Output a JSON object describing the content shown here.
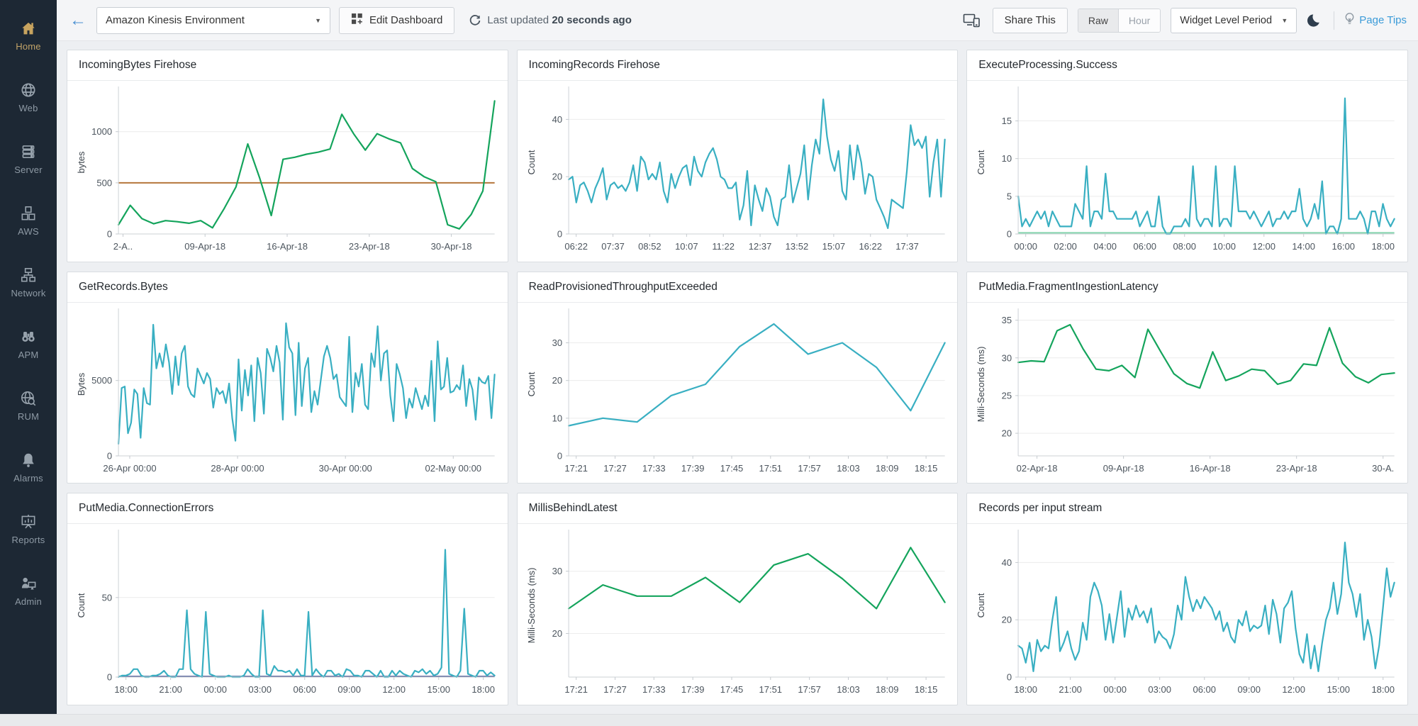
{
  "sidebar": {
    "items": [
      {
        "label": "Home",
        "icon": "home-icon",
        "active": true
      },
      {
        "label": "Web",
        "icon": "globe-icon",
        "active": false
      },
      {
        "label": "Server",
        "icon": "server-icon",
        "active": false
      },
      {
        "label": "AWS",
        "icon": "aws-cubes-icon",
        "active": false
      },
      {
        "label": "Network",
        "icon": "network-icon",
        "active": false
      },
      {
        "label": "APM",
        "icon": "binoculars-icon",
        "active": false
      },
      {
        "label": "RUM",
        "icon": "globe-magnifier-icon",
        "active": false
      },
      {
        "label": "Alarms",
        "icon": "bell-icon",
        "active": false
      },
      {
        "label": "Reports",
        "icon": "presentation-chart-icon",
        "active": false
      },
      {
        "label": "Admin",
        "icon": "user-monitor-icon",
        "active": false
      }
    ],
    "colors": {
      "background": "#1d2834",
      "label": "#8e9aa5",
      "active_label": "#c2a368"
    }
  },
  "topbar": {
    "back_icon": "arrow-left-icon",
    "dashboard_select": {
      "value": "Amazon Kinesis Environment",
      "caret": "▼"
    },
    "edit_dashboard_label": "Edit Dashboard",
    "refresh_icon": "refresh-icon",
    "last_updated_prefix": "Last updated",
    "last_updated_value": "20 seconds ago",
    "devices_icon": "devices-icon",
    "share_label": "Share This",
    "granularity": {
      "options": [
        "Raw",
        "Hour"
      ],
      "selected": "Raw"
    },
    "period_select": {
      "value": "Widget Level Period",
      "caret": "▼"
    },
    "dark_mode_icon": "moon-icon",
    "page_tips_icon": "lightbulb-icon",
    "page_tips_label": "Page Tips",
    "colors": {
      "link_blue": "#3b9bd8",
      "back_arrow_blue": "#4a90d2"
    }
  },
  "chart_data": [
    {
      "type": "line",
      "title": "IncomingBytes Firehose",
      "ylabel": "bytes",
      "ylim": [
        0,
        1400
      ],
      "yticks": [
        0,
        500,
        1000
      ],
      "xticklabels": [
        "2-A..",
        "09-Apr-18",
        "16-Apr-18",
        "23-Apr-18",
        "30-Apr-18"
      ],
      "xtick_range": [
        0.012,
        0.885
      ],
      "color": "#14a45c",
      "threshold": {
        "value": 500,
        "color": "#b5763c"
      },
      "values": [
        90,
        280,
        150,
        100,
        130,
        120,
        105,
        130,
        60,
        250,
        460,
        880,
        550,
        180,
        730,
        750,
        780,
        800,
        830,
        1170,
        980,
        820,
        980,
        930,
        890,
        640,
        560,
        510,
        90,
        50,
        190,
        420,
        1300
      ]
    },
    {
      "type": "line",
      "title": "IncomingRecords Firehose",
      "ylabel": "Count",
      "ylim": [
        0,
        50
      ],
      "yticks": [
        0,
        20,
        40
      ],
      "xticklabels": [
        "06:22",
        "07:37",
        "08:52",
        "10:07",
        "11:22",
        "12:37",
        "13:52",
        "15:07",
        "16:22",
        "17:37"
      ],
      "xtick_range": [
        0.02,
        0.9
      ],
      "color": "#39afc2",
      "values": [
        19,
        20,
        11,
        17,
        18,
        15,
        11,
        16,
        19,
        23,
        12,
        17,
        18,
        16,
        17,
        15,
        18,
        24,
        15,
        27,
        25,
        19,
        21,
        19,
        25,
        15,
        11,
        21,
        16,
        20,
        23,
        24,
        17,
        27,
        22,
        20,
        25,
        28,
        30,
        26,
        20,
        19,
        16,
        16,
        18,
        5,
        10,
        22,
        3,
        17,
        12,
        8,
        16,
        13,
        6,
        3,
        12,
        13,
        24,
        11,
        16,
        21,
        31,
        12,
        24,
        33,
        28,
        47,
        34,
        26,
        22,
        29,
        15,
        12,
        31,
        19,
        31,
        25,
        14,
        21,
        20,
        12,
        9,
        6,
        2,
        12,
        11,
        10,
        9,
        22,
        38,
        31,
        33,
        30,
        34,
        13,
        25,
        33,
        13,
        33
      ]
    },
    {
      "type": "line",
      "title": "ExecuteProcessing.Success",
      "ylabel": "Count",
      "ylim": [
        0,
        19
      ],
      "yticks": [
        0,
        5,
        10,
        15
      ],
      "xticklabels": [
        "00:00",
        "02:00",
        "04:00",
        "06:00",
        "08:00",
        "10:00",
        "12:00",
        "14:00",
        "16:00",
        "18:00"
      ],
      "xtick_range": [
        0.02,
        0.97
      ],
      "color": "#39afc2",
      "baseline": {
        "value": 0.15,
        "color": "#84d4ad"
      },
      "values": [
        5,
        1,
        2,
        1,
        2,
        3,
        2,
        3,
        1,
        3,
        2,
        1,
        1,
        1,
        1,
        4,
        3,
        2,
        9,
        1,
        3,
        3,
        2,
        8,
        3,
        3,
        2,
        2,
        2,
        2,
        2,
        3,
        1,
        2,
        3,
        1,
        1,
        5,
        1,
        0,
        0,
        1,
        1,
        1,
        2,
        1,
        9,
        2,
        1,
        2,
        2,
        1,
        9,
        1,
        2,
        2,
        1,
        9,
        3,
        3,
        3,
        2,
        3,
        2,
        1,
        2,
        3,
        1,
        2,
        2,
        3,
        2,
        3,
        3,
        6,
        2,
        1,
        2,
        4,
        2,
        7,
        0,
        1,
        1,
        0,
        2,
        18,
        2,
        2,
        2,
        3,
        2,
        0,
        3,
        3,
        1,
        4,
        2,
        1,
        2
      ]
    },
    {
      "type": "line",
      "title": "GetRecords.Bytes",
      "ylabel": "Bytes",
      "ylim": [
        0,
        9500
      ],
      "yticks": [
        0,
        5000
      ],
      "xticklabels": [
        "26-Apr 00:00",
        "28-Apr 00:00",
        "30-Apr 00:00",
        "02-May 00:00"
      ],
      "xtick_range": [
        0.03,
        0.89
      ],
      "color": "#39afc2",
      "values": [
        800,
        4500,
        4600,
        1500,
        2200,
        4400,
        4100,
        1200,
        4500,
        3500,
        3400,
        8700,
        5800,
        6800,
        5900,
        7400,
        6200,
        4100,
        6600,
        4700,
        6800,
        7300,
        4600,
        4100,
        3900,
        5800,
        5300,
        4800,
        5500,
        5100,
        3200,
        4500,
        4100,
        4300,
        3500,
        4800,
        2500,
        1000,
        6400,
        3000,
        5700,
        4000,
        6000,
        2300,
        6500,
        5500,
        2800,
        7100,
        6500,
        5600,
        7300,
        6200,
        2400,
        8800,
        7200,
        6800,
        2700,
        7500,
        3300,
        5800,
        6500,
        2900,
        4300,
        3400,
        5000,
        6600,
        7300,
        6500,
        5100,
        5400,
        3900,
        3600,
        3300,
        7900,
        2900,
        5500,
        4600,
        6100,
        3400,
        3100,
        6800,
        5900,
        8600,
        5000,
        6800,
        7000,
        4000,
        2300,
        6100,
        5400,
        4500,
        2500,
        3800,
        3200,
        4500,
        3800,
        3100,
        4000,
        3300,
        6300,
        2300,
        7600,
        4400,
        4600,
        6500,
        4200,
        4300,
        4700,
        4400,
        6000,
        3300,
        5100,
        4400,
        2400,
        5200,
        4900,
        4800,
        5300,
        2500,
        5400
      ]
    },
    {
      "type": "line",
      "title": "ReadProvisionedThroughputExceeded",
      "ylabel": "Count",
      "ylim": [
        0,
        38
      ],
      "yticks": [
        0,
        10,
        20,
        30
      ],
      "xticklabels": [
        "17:21",
        "17:27",
        "17:33",
        "17:39",
        "17:45",
        "17:51",
        "17:57",
        "18:03",
        "18:09",
        "18:15"
      ],
      "xtick_range": [
        0.02,
        0.95
      ],
      "color": "#39afc2",
      "values": [
        8,
        10,
        9,
        16,
        19,
        29,
        35,
        27,
        30,
        23.5,
        12,
        30
      ]
    },
    {
      "type": "line",
      "title": "PutMedia.FragmentIngestionLatency",
      "ylabel": "Milli-Seconds (ms)",
      "ylim": [
        17,
        36
      ],
      "yticks": [
        20,
        25,
        30,
        35
      ],
      "xticklabels": [
        "02-Apr-18",
        "09-Apr-18",
        "16-Apr-18",
        "23-Apr-18",
        "30-A."
      ],
      "xtick_range": [
        0.05,
        0.97
      ],
      "color": "#14a45c",
      "values": [
        29.4,
        29.6,
        29.5,
        33.6,
        34.4,
        31.2,
        28.5,
        28.3,
        29,
        27.4,
        33.8,
        30.8,
        27.9,
        26.6,
        26,
        30.8,
        27,
        27.6,
        28.5,
        28.3,
        26.5,
        27,
        29.2,
        29,
        34,
        29.3,
        27.5,
        26.7,
        27.8,
        28
      ]
    },
    {
      "type": "line",
      "title": "PutMedia.ConnectionErrors",
      "ylabel": "Count",
      "ylim": [
        0,
        90
      ],
      "yticks": [
        0,
        50
      ],
      "xticklabels": [
        "18:00",
        "21:00",
        "00:00",
        "03:00",
        "06:00",
        "09:00",
        "12:00",
        "15:00",
        "18:00"
      ],
      "xtick_range": [
        0.02,
        0.97
      ],
      "color": "#39afc2",
      "baseline": {
        "value": 0.4,
        "color": "#5d689e"
      },
      "values": [
        0,
        1,
        1,
        2,
        5,
        5,
        1,
        0,
        0,
        1,
        1,
        2,
        4,
        1,
        0,
        0,
        5,
        5,
        42,
        5,
        2,
        1,
        0,
        41,
        2,
        1,
        0,
        0,
        0,
        1,
        0,
        0,
        0,
        1,
        5,
        2,
        0,
        0,
        42,
        2,
        1,
        7,
        4,
        4,
        3,
        4,
        1,
        5,
        1,
        1,
        41,
        1,
        5,
        2,
        0,
        4,
        4,
        1,
        2,
        0,
        5,
        4,
        1,
        1,
        0,
        4,
        4,
        2,
        0,
        4,
        0,
        0,
        4,
        1,
        4,
        2,
        1,
        0,
        4,
        3,
        5,
        2,
        4,
        1,
        2,
        6,
        80,
        2,
        1,
        0,
        4,
        43,
        2,
        1,
        0,
        4,
        4,
        1,
        3,
        1
      ]
    },
    {
      "type": "line",
      "title": "MillisBehindLatest",
      "ylabel": "Milli-Seconds (ms)",
      "ylim": [
        13,
        36
      ],
      "yticks": [
        20,
        30
      ],
      "xticklabels": [
        "17:21",
        "17:27",
        "17:33",
        "17:39",
        "17:45",
        "17:51",
        "17:57",
        "18:03",
        "18:09",
        "18:15"
      ],
      "xtick_range": [
        0.02,
        0.95
      ],
      "color": "#14a45c",
      "values": [
        24,
        27.8,
        26,
        26,
        29,
        25,
        31,
        32.8,
        28.8,
        24,
        33.8,
        25
      ]
    },
    {
      "type": "line",
      "title": "Records per input stream",
      "ylabel": "Count",
      "ylim": [
        0,
        50
      ],
      "yticks": [
        0,
        20,
        40
      ],
      "xticklabels": [
        "18:00",
        "21:00",
        "00:00",
        "03:00",
        "06:00",
        "09:00",
        "12:00",
        "15:00",
        "18:00"
      ],
      "xtick_range": [
        0.02,
        0.97
      ],
      "color": "#39afc2",
      "values": [
        11,
        10,
        5,
        12,
        2,
        13,
        9,
        11,
        10,
        20,
        28,
        9,
        12,
        16,
        10,
        6,
        9,
        19,
        13,
        28,
        33,
        30,
        25,
        13,
        22,
        12,
        21,
        30,
        14,
        24,
        20,
        25,
        21,
        23,
        19,
        24,
        12,
        16,
        14,
        13,
        10,
        15,
        25,
        20,
        35,
        28,
        23,
        27,
        24,
        28,
        26,
        24,
        20,
        23,
        16,
        19,
        14,
        12,
        20,
        18,
        23,
        16,
        18,
        17,
        18,
        25,
        15,
        27,
        22,
        12,
        24,
        26,
        30,
        17,
        8,
        5,
        15,
        3,
        11,
        2,
        12,
        20,
        24,
        33,
        22,
        29,
        47,
        33,
        29,
        21,
        29,
        13,
        20,
        14,
        3,
        11,
        24,
        38,
        28,
        33
      ]
    }
  ]
}
